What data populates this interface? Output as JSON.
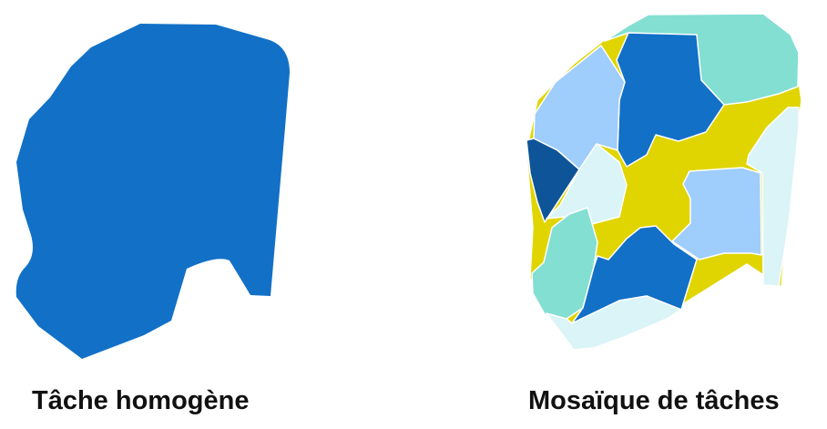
{
  "captions": {
    "homogeneous": "Tâche homogène",
    "mosaic": "Mosaïque de tâches"
  },
  "colors": {
    "blue": "#1270c7",
    "dark_blue": "#0e5498",
    "light_blue": "#9fcdfc",
    "teal": "#82dfd2",
    "pale_cyan": "#daf4f7",
    "yellow": "#e0d500",
    "outline": "#ffffff"
  }
}
